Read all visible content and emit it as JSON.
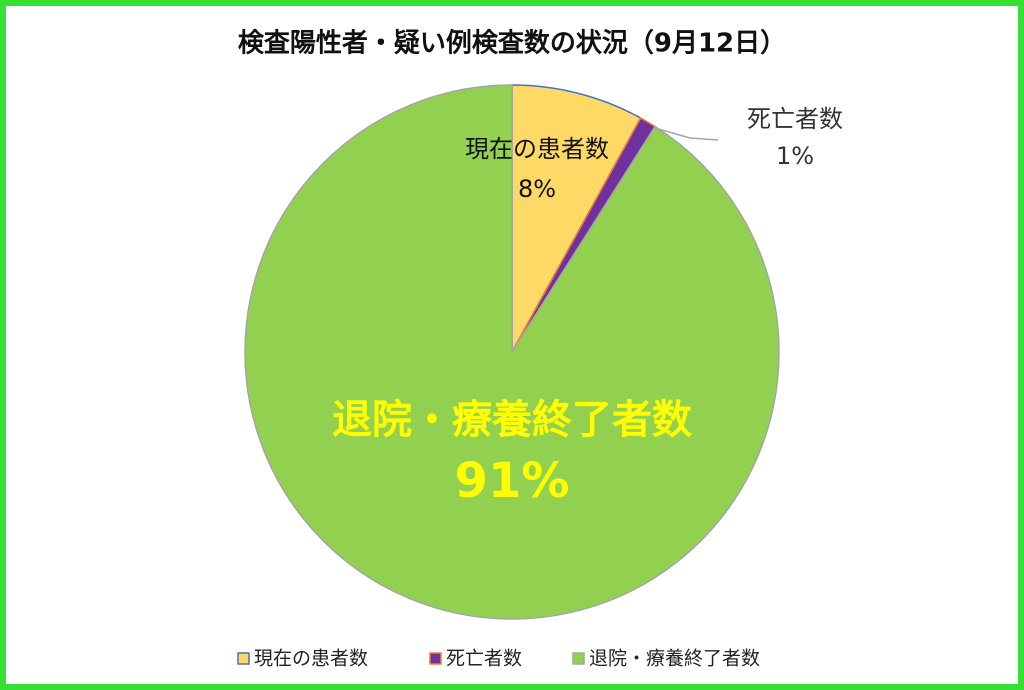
{
  "chart_data": {
    "type": "pie",
    "title": "検査陽性者・疑い例検査数の状況（9月12日）",
    "categories": [
      "現在の患者数",
      "死亡者数",
      "退院・療養終了者数"
    ],
    "values": [
      8,
      1,
      91
    ],
    "value_labels": [
      "8%",
      "1%",
      "91%"
    ],
    "colors": [
      "#ffd966",
      "#7030a0",
      "#92d050"
    ],
    "legend": "bottom"
  }
}
